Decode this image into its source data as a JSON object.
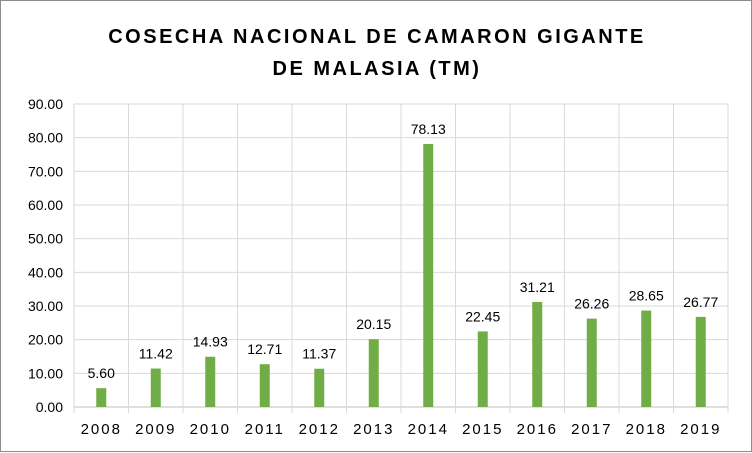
{
  "chart_data": {
    "type": "bar",
    "title_lines": [
      "COSECHA NACIONAL DE CAMARON GIGANTE",
      "DE MALASIA (TM)"
    ],
    "categories": [
      "2008",
      "2009",
      "2010",
      "2011",
      "2012",
      "2013",
      "2014",
      "2015",
      "2016",
      "2017",
      "2018",
      "2019"
    ],
    "values": [
      5.6,
      11.42,
      14.93,
      12.71,
      11.37,
      20.15,
      78.13,
      22.45,
      31.21,
      26.26,
      28.65,
      26.77
    ],
    "value_labels": [
      "5.60",
      "11.42",
      "14.93",
      "12.71",
      "11.37",
      "20.15",
      "78.13",
      "22.45",
      "31.21",
      "26.26",
      "28.65",
      "26.77"
    ],
    "y_ticks": [
      "0.00",
      "10.00",
      "20.00",
      "30.00",
      "40.00",
      "50.00",
      "60.00",
      "70.00",
      "80.00",
      "90.00"
    ],
    "ylim": [
      0,
      90
    ],
    "grid": true,
    "legend": false,
    "bar_color": "#70ad47",
    "grid_color": "#d9d9d9",
    "axis_color": "#bfbfbf"
  }
}
